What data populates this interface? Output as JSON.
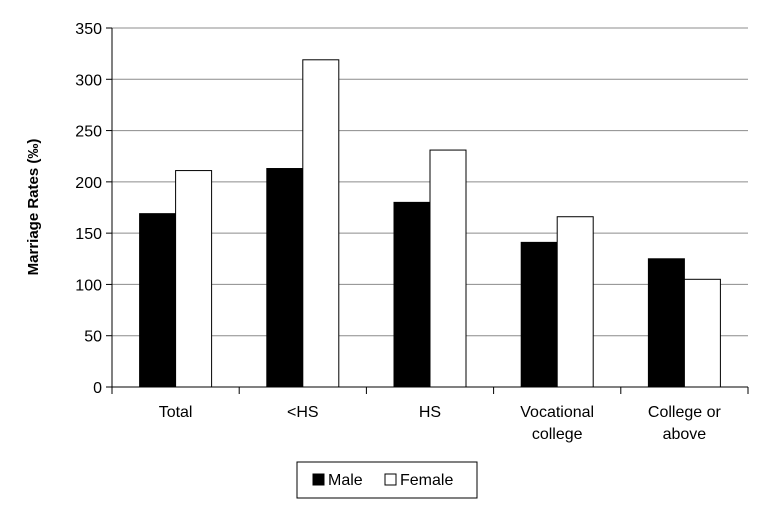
{
  "chart_data": {
    "type": "bar",
    "ylabel": "Marriage Rates (‰)",
    "ylim": [
      0,
      350
    ],
    "yticks": [
      0,
      50,
      100,
      150,
      200,
      250,
      300,
      350
    ],
    "grid": true,
    "legend_position": "bottom",
    "categories": [
      [
        "Total"
      ],
      [
        "<HS"
      ],
      [
        "HS"
      ],
      [
        "Vocational",
        "college"
      ],
      [
        "College or",
        "above"
      ]
    ],
    "series": [
      {
        "name": "Male",
        "values": [
          169,
          213,
          180,
          141,
          125
        ],
        "color": "#000000"
      },
      {
        "name": "Female",
        "values": [
          211,
          319,
          231,
          166,
          105
        ],
        "color": "#ffffff"
      }
    ]
  }
}
